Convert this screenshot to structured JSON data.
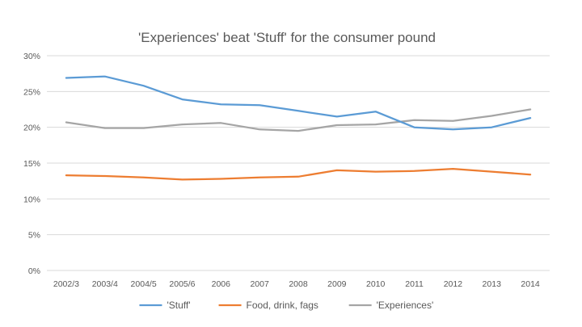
{
  "chart_data": {
    "type": "line",
    "title": "'Experiences' beat 'Stuff' for the consumer pound",
    "xlabel": "",
    "ylabel": "",
    "categories": [
      "2002/3",
      "2003/4",
      "2004/5",
      "2005/6",
      "2006",
      "2007",
      "2008",
      "2009",
      "2010",
      "2011",
      "2012",
      "2013",
      "2014"
    ],
    "ylim": [
      0,
      30
    ],
    "yticks": [
      0,
      5,
      10,
      15,
      20,
      25,
      30
    ],
    "ytick_labels": [
      "0%",
      "5%",
      "10%",
      "15%",
      "20%",
      "25%",
      "30%"
    ],
    "grid": true,
    "legend_position": "bottom",
    "series": [
      {
        "name": "'Stuff'",
        "color": "#5b9bd5",
        "values": [
          26.9,
          27.1,
          25.8,
          23.9,
          23.2,
          23.1,
          22.3,
          21.5,
          22.2,
          20.0,
          19.7,
          20.0,
          21.3
        ]
      },
      {
        "name": "Food, drink, fags",
        "color": "#ed7d31",
        "values": [
          13.3,
          13.2,
          13.0,
          12.7,
          12.8,
          13.0,
          13.1,
          14.0,
          13.8,
          13.9,
          14.2,
          13.8,
          13.4
        ]
      },
      {
        "name": "'Experiences'",
        "color": "#a5a5a5",
        "values": [
          20.7,
          19.9,
          19.9,
          20.4,
          20.6,
          19.7,
          19.5,
          20.3,
          20.4,
          21.0,
          20.9,
          21.6,
          22.5
        ]
      }
    ]
  }
}
